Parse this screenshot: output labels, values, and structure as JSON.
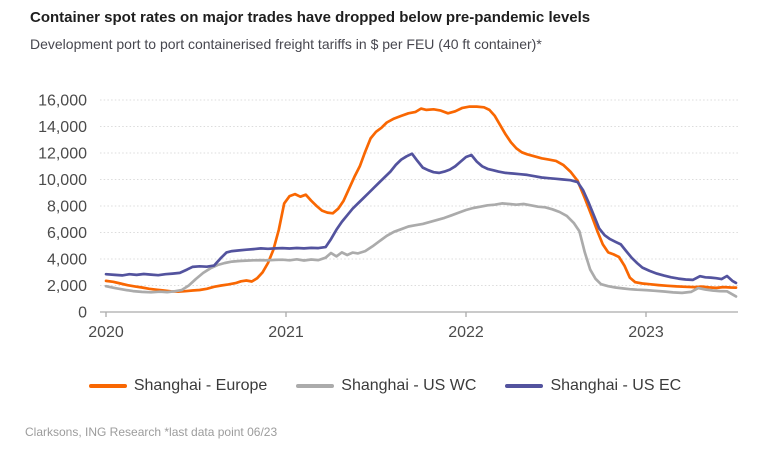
{
  "chart_data": {
    "type": "line",
    "title": "Container spot rates on major trades have dropped below pre-pandemic levels",
    "subtitle": "Development port to port containerised freight tariffs in $ per FEU (40 ft container)*",
    "source_note": "Clarksons, ING Research *last data point 06/23",
    "unit": "$ per FEU (40 ft container)",
    "grid": "horizontal dotted",
    "legend_position": "bottom center",
    "x_axis": {
      "tick_values": [
        2020,
        2021,
        2022,
        2023
      ],
      "tick_labels": [
        "2020",
        "2021",
        "2022",
        "2023"
      ],
      "range": [
        2020,
        2023.55
      ]
    },
    "y_axis": {
      "tick_values": [
        0,
        2000,
        4000,
        6000,
        8000,
        10000,
        12000,
        14000,
        16000
      ],
      "range": [
        0,
        16000
      ],
      "tick_format": "#,##0"
    },
    "series": [
      {
        "id": "shanghai-europe",
        "name": "Shanghai - Europe",
        "color": "#F96702",
        "points": [
          [
            2020.0,
            2350
          ],
          [
            2020.04,
            2280
          ],
          [
            2020.08,
            2150
          ],
          [
            2020.12,
            2020
          ],
          [
            2020.16,
            1930
          ],
          [
            2020.2,
            1850
          ],
          [
            2020.24,
            1750
          ],
          [
            2020.28,
            1680
          ],
          [
            2020.32,
            1620
          ],
          [
            2020.36,
            1560
          ],
          [
            2020.4,
            1530
          ],
          [
            2020.44,
            1570
          ],
          [
            2020.48,
            1620
          ],
          [
            2020.52,
            1660
          ],
          [
            2020.56,
            1750
          ],
          [
            2020.6,
            1900
          ],
          [
            2020.64,
            2000
          ],
          [
            2020.68,
            2080
          ],
          [
            2020.72,
            2180
          ],
          [
            2020.75,
            2320
          ],
          [
            2020.78,
            2380
          ],
          [
            2020.81,
            2300
          ],
          [
            2020.84,
            2550
          ],
          [
            2020.87,
            3000
          ],
          [
            2020.9,
            3700
          ],
          [
            2020.93,
            4700
          ],
          [
            2020.96,
            6200
          ],
          [
            2020.99,
            8200
          ],
          [
            2021.02,
            8750
          ],
          [
            2021.05,
            8900
          ],
          [
            2021.08,
            8700
          ],
          [
            2021.11,
            8850
          ],
          [
            2021.14,
            8400
          ],
          [
            2021.17,
            8000
          ],
          [
            2021.2,
            7650
          ],
          [
            2021.23,
            7500
          ],
          [
            2021.26,
            7450
          ],
          [
            2021.29,
            7800
          ],
          [
            2021.32,
            8400
          ],
          [
            2021.35,
            9300
          ],
          [
            2021.38,
            10200
          ],
          [
            2021.41,
            11000
          ],
          [
            2021.44,
            12100
          ],
          [
            2021.47,
            13100
          ],
          [
            2021.5,
            13600
          ],
          [
            2021.53,
            13900
          ],
          [
            2021.56,
            14300
          ],
          [
            2021.6,
            14600
          ],
          [
            2021.64,
            14800
          ],
          [
            2021.68,
            15000
          ],
          [
            2021.72,
            15100
          ],
          [
            2021.75,
            15350
          ],
          [
            2021.78,
            15250
          ],
          [
            2021.82,
            15300
          ],
          [
            2021.86,
            15200
          ],
          [
            2021.9,
            15000
          ],
          [
            2021.94,
            15150
          ],
          [
            2021.98,
            15400
          ],
          [
            2022.02,
            15500
          ],
          [
            2022.06,
            15500
          ],
          [
            2022.1,
            15450
          ],
          [
            2022.13,
            15250
          ],
          [
            2022.16,
            14800
          ],
          [
            2022.19,
            14100
          ],
          [
            2022.22,
            13400
          ],
          [
            2022.25,
            12800
          ],
          [
            2022.28,
            12350
          ],
          [
            2022.31,
            12050
          ],
          [
            2022.34,
            11900
          ],
          [
            2022.38,
            11750
          ],
          [
            2022.42,
            11600
          ],
          [
            2022.46,
            11500
          ],
          [
            2022.5,
            11400
          ],
          [
            2022.54,
            11100
          ],
          [
            2022.58,
            10600
          ],
          [
            2022.62,
            9900
          ],
          [
            2022.66,
            8600
          ],
          [
            2022.7,
            7200
          ],
          [
            2022.73,
            6100
          ],
          [
            2022.76,
            5100
          ],
          [
            2022.79,
            4500
          ],
          [
            2022.82,
            4350
          ],
          [
            2022.85,
            4150
          ],
          [
            2022.88,
            3500
          ],
          [
            2022.91,
            2600
          ],
          [
            2022.94,
            2250
          ],
          [
            2022.98,
            2150
          ],
          [
            2023.02,
            2100
          ],
          [
            2023.07,
            2030
          ],
          [
            2023.12,
            1980
          ],
          [
            2023.17,
            1930
          ],
          [
            2023.22,
            1900
          ],
          [
            2023.27,
            1880
          ],
          [
            2023.31,
            1920
          ],
          [
            2023.35,
            1860
          ],
          [
            2023.39,
            1820
          ],
          [
            2023.43,
            1880
          ],
          [
            2023.47,
            1850
          ],
          [
            2023.5,
            1840
          ]
        ]
      },
      {
        "id": "shanghai-us-wc",
        "name": "Shanghai - US WC",
        "color": "#ABABAB",
        "points": [
          [
            2020.0,
            1950
          ],
          [
            2020.05,
            1800
          ],
          [
            2020.1,
            1680
          ],
          [
            2020.15,
            1580
          ],
          [
            2020.2,
            1520
          ],
          [
            2020.25,
            1490
          ],
          [
            2020.3,
            1530
          ],
          [
            2020.34,
            1500
          ],
          [
            2020.38,
            1560
          ],
          [
            2020.42,
            1650
          ],
          [
            2020.46,
            2000
          ],
          [
            2020.5,
            2500
          ],
          [
            2020.54,
            2950
          ],
          [
            2020.58,
            3300
          ],
          [
            2020.62,
            3550
          ],
          [
            2020.66,
            3700
          ],
          [
            2020.7,
            3800
          ],
          [
            2020.74,
            3850
          ],
          [
            2020.78,
            3880
          ],
          [
            2020.82,
            3900
          ],
          [
            2020.86,
            3920
          ],
          [
            2020.9,
            3900
          ],
          [
            2020.94,
            3930
          ],
          [
            2020.98,
            3950
          ],
          [
            2021.02,
            3900
          ],
          [
            2021.06,
            3980
          ],
          [
            2021.1,
            3890
          ],
          [
            2021.14,
            3960
          ],
          [
            2021.18,
            3920
          ],
          [
            2021.22,
            4100
          ],
          [
            2021.25,
            4450
          ],
          [
            2021.28,
            4200
          ],
          [
            2021.31,
            4500
          ],
          [
            2021.34,
            4300
          ],
          [
            2021.37,
            4480
          ],
          [
            2021.4,
            4420
          ],
          [
            2021.44,
            4600
          ],
          [
            2021.48,
            4950
          ],
          [
            2021.52,
            5350
          ],
          [
            2021.56,
            5750
          ],
          [
            2021.6,
            6050
          ],
          [
            2021.64,
            6250
          ],
          [
            2021.68,
            6450
          ],
          [
            2021.72,
            6550
          ],
          [
            2021.76,
            6650
          ],
          [
            2021.8,
            6800
          ],
          [
            2021.84,
            6950
          ],
          [
            2021.88,
            7100
          ],
          [
            2021.92,
            7300
          ],
          [
            2021.96,
            7500
          ],
          [
            2022.0,
            7700
          ],
          [
            2022.04,
            7850
          ],
          [
            2022.08,
            7950
          ],
          [
            2022.12,
            8050
          ],
          [
            2022.16,
            8100
          ],
          [
            2022.2,
            8200
          ],
          [
            2022.24,
            8150
          ],
          [
            2022.28,
            8100
          ],
          [
            2022.32,
            8150
          ],
          [
            2022.36,
            8050
          ],
          [
            2022.4,
            7950
          ],
          [
            2022.44,
            7900
          ],
          [
            2022.48,
            7750
          ],
          [
            2022.52,
            7550
          ],
          [
            2022.56,
            7250
          ],
          [
            2022.6,
            6700
          ],
          [
            2022.63,
            6100
          ],
          [
            2022.66,
            4500
          ],
          [
            2022.69,
            3200
          ],
          [
            2022.72,
            2500
          ],
          [
            2022.75,
            2100
          ],
          [
            2022.79,
            1950
          ],
          [
            2022.83,
            1850
          ],
          [
            2022.87,
            1780
          ],
          [
            2022.91,
            1720
          ],
          [
            2022.95,
            1680
          ],
          [
            2023.0,
            1650
          ],
          [
            2023.05,
            1600
          ],
          [
            2023.1,
            1550
          ],
          [
            2023.15,
            1480
          ],
          [
            2023.2,
            1440
          ],
          [
            2023.25,
            1520
          ],
          [
            2023.29,
            1800
          ],
          [
            2023.33,
            1700
          ],
          [
            2023.37,
            1620
          ],
          [
            2023.41,
            1580
          ],
          [
            2023.45,
            1560
          ],
          [
            2023.5,
            1180
          ]
        ]
      },
      {
        "id": "shanghai-us-ec",
        "name": "Shanghai - US EC",
        "color": "#53539E",
        "points": [
          [
            2020.0,
            2850
          ],
          [
            2020.05,
            2800
          ],
          [
            2020.09,
            2760
          ],
          [
            2020.13,
            2850
          ],
          [
            2020.17,
            2800
          ],
          [
            2020.21,
            2870
          ],
          [
            2020.25,
            2820
          ],
          [
            2020.29,
            2780
          ],
          [
            2020.33,
            2850
          ],
          [
            2020.37,
            2900
          ],
          [
            2020.41,
            2950
          ],
          [
            2020.45,
            3200
          ],
          [
            2020.48,
            3400
          ],
          [
            2020.52,
            3450
          ],
          [
            2020.56,
            3420
          ],
          [
            2020.6,
            3500
          ],
          [
            2020.64,
            4100
          ],
          [
            2020.67,
            4500
          ],
          [
            2020.7,
            4600
          ],
          [
            2020.74,
            4650
          ],
          [
            2020.78,
            4700
          ],
          [
            2020.82,
            4750
          ],
          [
            2020.86,
            4800
          ],
          [
            2020.9,
            4770
          ],
          [
            2020.94,
            4800
          ],
          [
            2020.98,
            4820
          ],
          [
            2021.02,
            4790
          ],
          [
            2021.06,
            4830
          ],
          [
            2021.1,
            4800
          ],
          [
            2021.14,
            4840
          ],
          [
            2021.18,
            4820
          ],
          [
            2021.22,
            4900
          ],
          [
            2021.25,
            5500
          ],
          [
            2021.28,
            6200
          ],
          [
            2021.31,
            6800
          ],
          [
            2021.34,
            7300
          ],
          [
            2021.37,
            7800
          ],
          [
            2021.4,
            8200
          ],
          [
            2021.43,
            8600
          ],
          [
            2021.46,
            9000
          ],
          [
            2021.49,
            9400
          ],
          [
            2021.52,
            9800
          ],
          [
            2021.55,
            10200
          ],
          [
            2021.58,
            10600
          ],
          [
            2021.61,
            11100
          ],
          [
            2021.64,
            11500
          ],
          [
            2021.67,
            11750
          ],
          [
            2021.7,
            11950
          ],
          [
            2021.73,
            11400
          ],
          [
            2021.76,
            10900
          ],
          [
            2021.79,
            10700
          ],
          [
            2021.82,
            10550
          ],
          [
            2021.85,
            10500
          ],
          [
            2021.88,
            10600
          ],
          [
            2021.91,
            10750
          ],
          [
            2021.94,
            11000
          ],
          [
            2021.97,
            11350
          ],
          [
            2022.0,
            11700
          ],
          [
            2022.03,
            11850
          ],
          [
            2022.06,
            11350
          ],
          [
            2022.09,
            11000
          ],
          [
            2022.12,
            10800
          ],
          [
            2022.15,
            10700
          ],
          [
            2022.18,
            10600
          ],
          [
            2022.22,
            10500
          ],
          [
            2022.26,
            10450
          ],
          [
            2022.3,
            10400
          ],
          [
            2022.34,
            10350
          ],
          [
            2022.38,
            10250
          ],
          [
            2022.42,
            10150
          ],
          [
            2022.46,
            10100
          ],
          [
            2022.5,
            10050
          ],
          [
            2022.54,
            10000
          ],
          [
            2022.58,
            9950
          ],
          [
            2022.62,
            9800
          ],
          [
            2022.65,
            9200
          ],
          [
            2022.68,
            8300
          ],
          [
            2022.71,
            7300
          ],
          [
            2022.74,
            6300
          ],
          [
            2022.77,
            5800
          ],
          [
            2022.8,
            5500
          ],
          [
            2022.83,
            5300
          ],
          [
            2022.86,
            5100
          ],
          [
            2022.89,
            4600
          ],
          [
            2022.92,
            4100
          ],
          [
            2022.95,
            3700
          ],
          [
            2022.98,
            3350
          ],
          [
            2023.02,
            3100
          ],
          [
            2023.06,
            2900
          ],
          [
            2023.1,
            2750
          ],
          [
            2023.14,
            2620
          ],
          [
            2023.18,
            2520
          ],
          [
            2023.22,
            2450
          ],
          [
            2023.26,
            2420
          ],
          [
            2023.3,
            2700
          ],
          [
            2023.33,
            2620
          ],
          [
            2023.36,
            2600
          ],
          [
            2023.39,
            2550
          ],
          [
            2023.42,
            2480
          ],
          [
            2023.45,
            2720
          ],
          [
            2023.48,
            2350
          ],
          [
            2023.5,
            2200
          ]
        ]
      }
    ]
  }
}
